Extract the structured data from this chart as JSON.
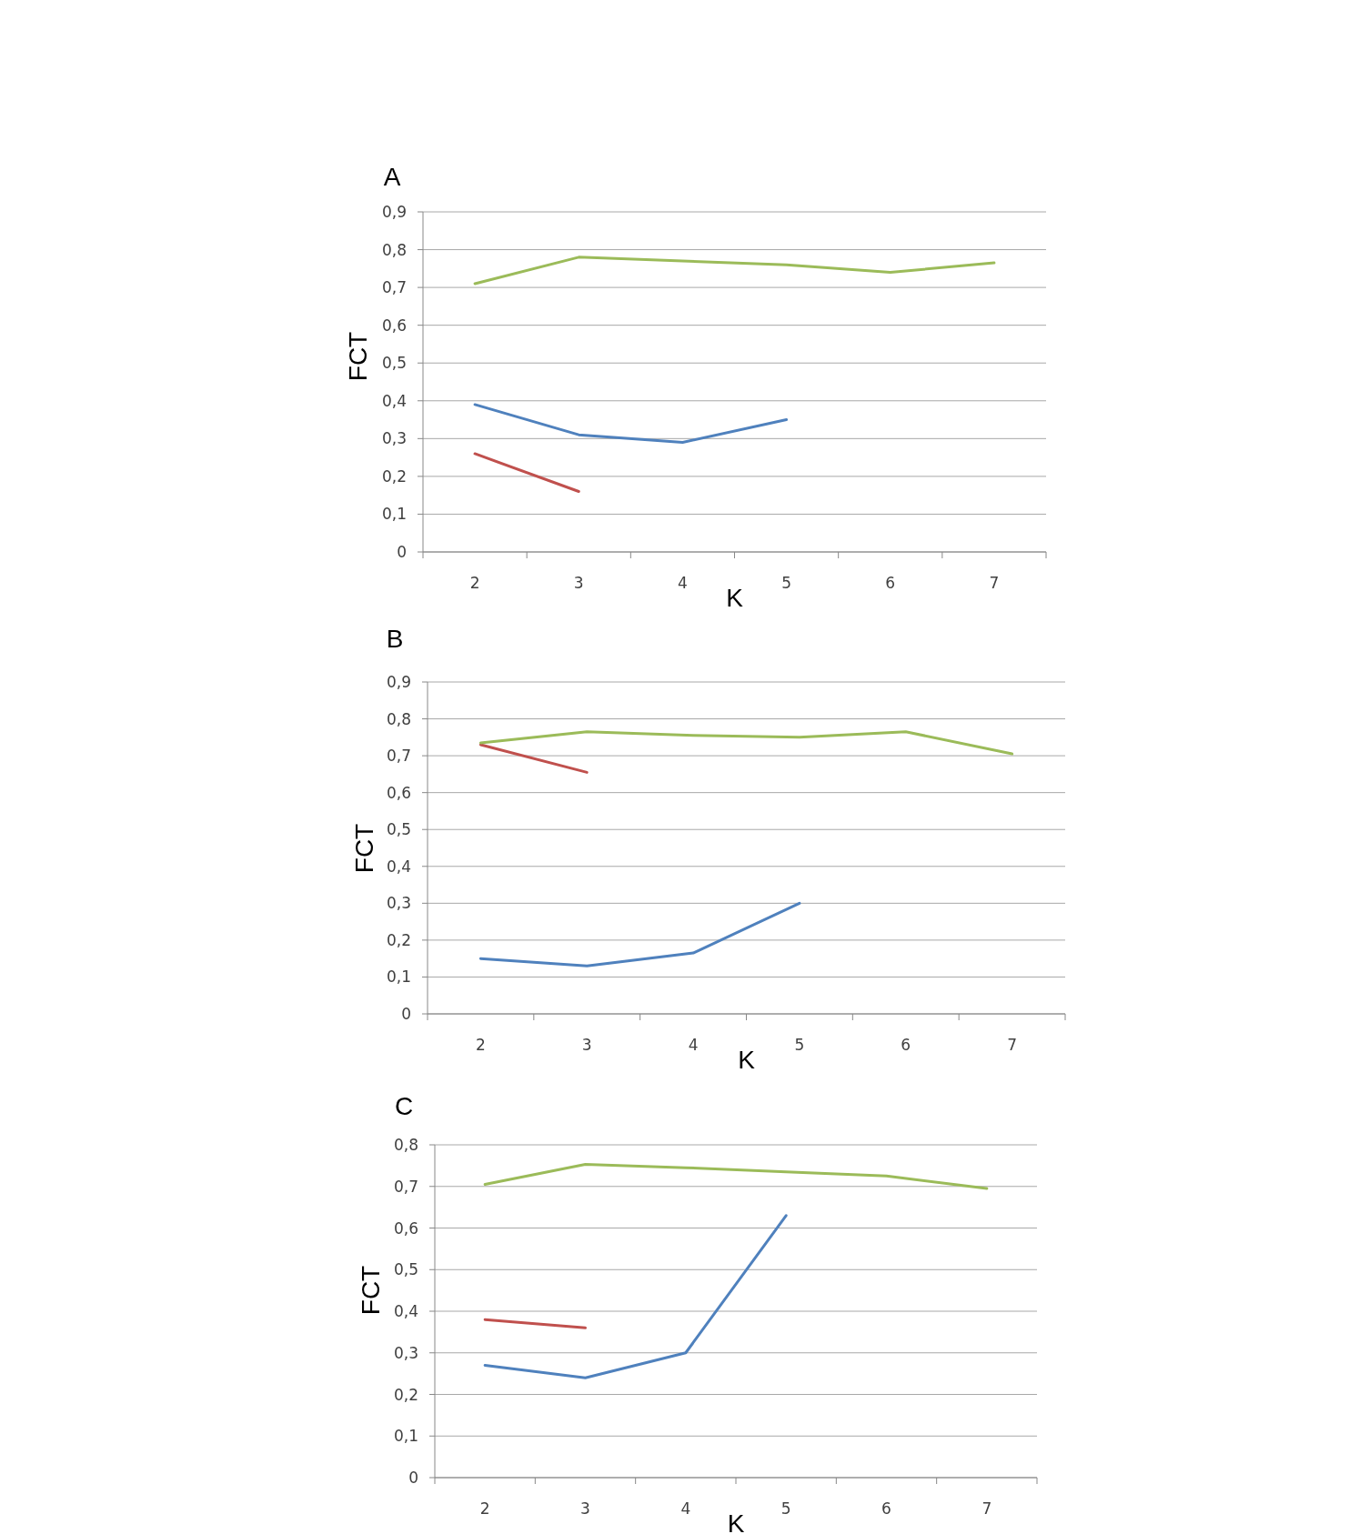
{
  "chart_data": [
    {
      "type": "line",
      "title": "A",
      "xlabel": "K",
      "ylabel": "FCT",
      "categories": [
        "2",
        "3",
        "4",
        "5",
        "6",
        "7"
      ],
      "series": [
        {
          "color": "#4f81bd",
          "values": [
            0.39,
            0.31,
            0.29,
            0.35,
            null,
            null
          ]
        },
        {
          "color": "#c0504d",
          "values": [
            0.26,
            0.16,
            null,
            null,
            null,
            null
          ]
        },
        {
          "color": "#9bbb59",
          "values": [
            0.71,
            0.78,
            0.77,
            0.76,
            0.74,
            0.765
          ]
        }
      ],
      "ylim": [
        0,
        0.9
      ],
      "yticks": [
        {
          "value": 0,
          "label": "0"
        },
        {
          "value": 0.1,
          "label": "0,1"
        },
        {
          "value": 0.2,
          "label": "0,2"
        },
        {
          "value": 0.3,
          "label": "0,3"
        },
        {
          "value": 0.4,
          "label": "0,4"
        },
        {
          "value": 0.5,
          "label": "0,5"
        },
        {
          "value": 0.6,
          "label": "0,6"
        },
        {
          "value": 0.7,
          "label": "0,7"
        },
        {
          "value": 0.8,
          "label": "0,8"
        },
        {
          "value": 0.9,
          "label": "0,9"
        }
      ],
      "grid": "y",
      "marker": "none",
      "line_style": "solid"
    },
    {
      "type": "line",
      "title": "B",
      "xlabel": "K",
      "ylabel": "FCT",
      "categories": [
        "2",
        "3",
        "4",
        "5",
        "6",
        "7"
      ],
      "series": [
        {
          "color": "#4f81bd",
          "values": [
            0.15,
            0.13,
            0.165,
            0.3,
            null,
            null
          ]
        },
        {
          "color": "#c0504d",
          "values": [
            0.73,
            0.655,
            null,
            null,
            null,
            null
          ]
        },
        {
          "color": "#9bbb59",
          "values": [
            0.735,
            0.765,
            0.755,
            0.75,
            0.765,
            0.705
          ]
        }
      ],
      "ylim": [
        0,
        0.9
      ],
      "yticks": [
        {
          "value": 0,
          "label": "0"
        },
        {
          "value": 0.1,
          "label": "0,1"
        },
        {
          "value": 0.2,
          "label": "0,2"
        },
        {
          "value": 0.3,
          "label": "0,3"
        },
        {
          "value": 0.4,
          "label": "0,4"
        },
        {
          "value": 0.5,
          "label": "0,5"
        },
        {
          "value": 0.6,
          "label": "0,6"
        },
        {
          "value": 0.7,
          "label": "0,7"
        },
        {
          "value": 0.8,
          "label": "0,8"
        },
        {
          "value": 0.9,
          "label": "0,9"
        }
      ],
      "grid": "y",
      "marker": "none",
      "line_style": "solid"
    },
    {
      "type": "line",
      "title": "C",
      "xlabel": "K",
      "ylabel": "FCT",
      "categories": [
        "2",
        "3",
        "4",
        "5",
        "6",
        "7"
      ],
      "series": [
        {
          "color": "#4f81bd",
          "values": [
            0.27,
            0.24,
            0.3,
            0.63,
            null,
            null
          ]
        },
        {
          "color": "#c0504d",
          "values": [
            0.38,
            0.36,
            null,
            null,
            null,
            null
          ]
        },
        {
          "color": "#9bbb59",
          "values": [
            0.705,
            0.753,
            0.745,
            0.735,
            0.725,
            0.695
          ]
        }
      ],
      "ylim": [
        0,
        0.8
      ],
      "yticks": [
        {
          "value": 0,
          "label": "0"
        },
        {
          "value": 0.1,
          "label": "0,1"
        },
        {
          "value": 0.2,
          "label": "0,2"
        },
        {
          "value": 0.3,
          "label": "0,3"
        },
        {
          "value": 0.4,
          "label": "0,4"
        },
        {
          "value": 0.5,
          "label": "0,5"
        },
        {
          "value": 0.6,
          "label": "0,6"
        },
        {
          "value": 0.7,
          "label": "0,7"
        },
        {
          "value": 0.8,
          "label": "0,8"
        }
      ],
      "grid": "y",
      "marker": "none",
      "line_style": "solid"
    }
  ]
}
